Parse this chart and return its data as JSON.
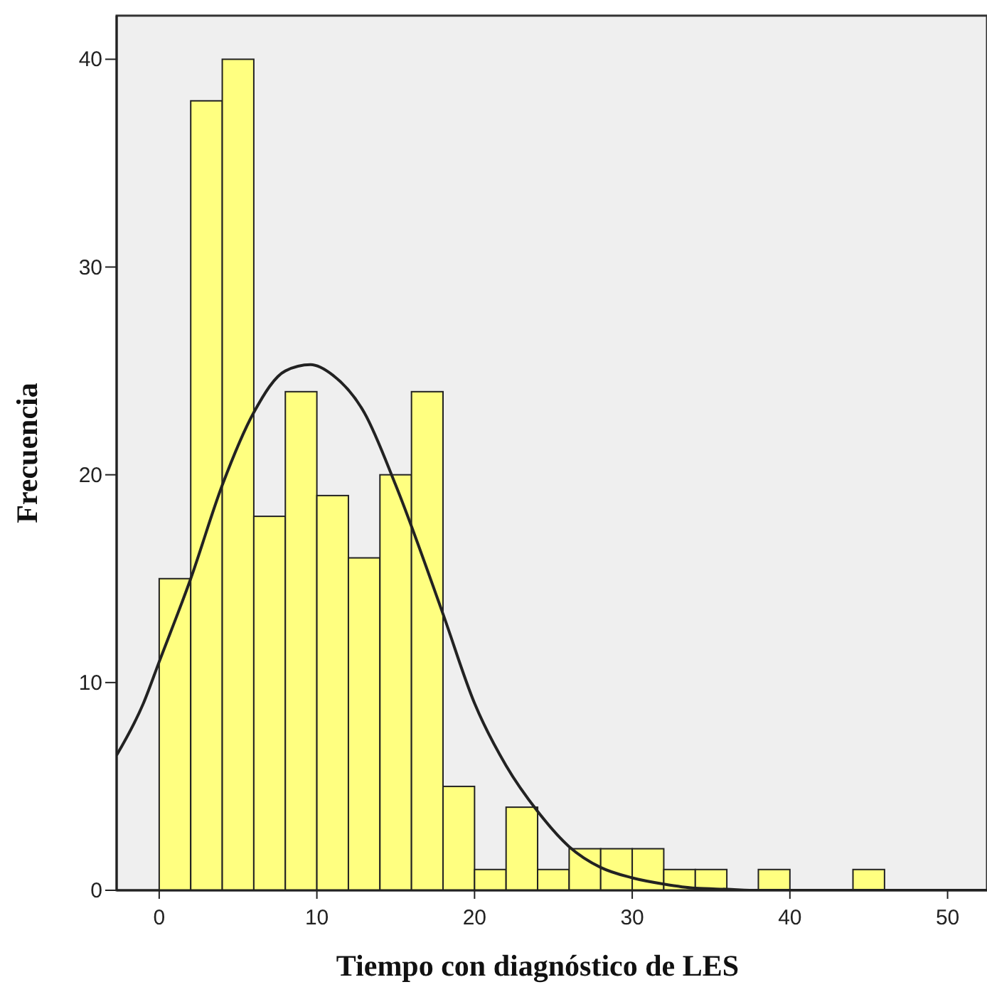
{
  "chart_data": {
    "type": "histogram",
    "xlabel": "Tiempo con diagnóstico de LES",
    "ylabel": "Frecuencia",
    "bins": [
      0,
      2,
      4,
      6,
      8,
      10,
      12,
      14,
      16,
      18,
      20,
      22,
      24,
      26,
      28,
      30,
      32,
      34,
      36,
      38,
      40,
      42,
      44,
      46
    ],
    "values": [
      15,
      38,
      40,
      18,
      24,
      19,
      16,
      20,
      24,
      5,
      1,
      4,
      1,
      2,
      2,
      2,
      1,
      1,
      0,
      1,
      0,
      0,
      1
    ],
    "color": "#ffff80",
    "series": [
      {
        "type": "line",
        "color": "#222222",
        "x": [
          -2.7,
          -1,
          0,
          2,
          4,
          6,
          8,
          9.6,
          11,
          13,
          15,
          18,
          20,
          22,
          24,
          26,
          28,
          30,
          32,
          34,
          36,
          38,
          42,
          52.5
        ],
        "values": [
          6.5,
          9,
          11,
          15,
          19.5,
          23,
          25,
          25.3,
          24.8,
          23,
          19.5,
          13.3,
          9,
          6,
          3.8,
          2.1,
          1.1,
          0.6,
          0.3,
          0.1,
          0.05,
          0,
          0,
          0
        ]
      }
    ],
    "xlim": [
      -2.7,
      52.5
    ],
    "ylim": [
      0,
      42.1
    ],
    "xticks": [
      0,
      10,
      20,
      30,
      40,
      50
    ],
    "yticks": [
      0,
      10,
      20,
      30,
      40
    ],
    "grid": false
  }
}
